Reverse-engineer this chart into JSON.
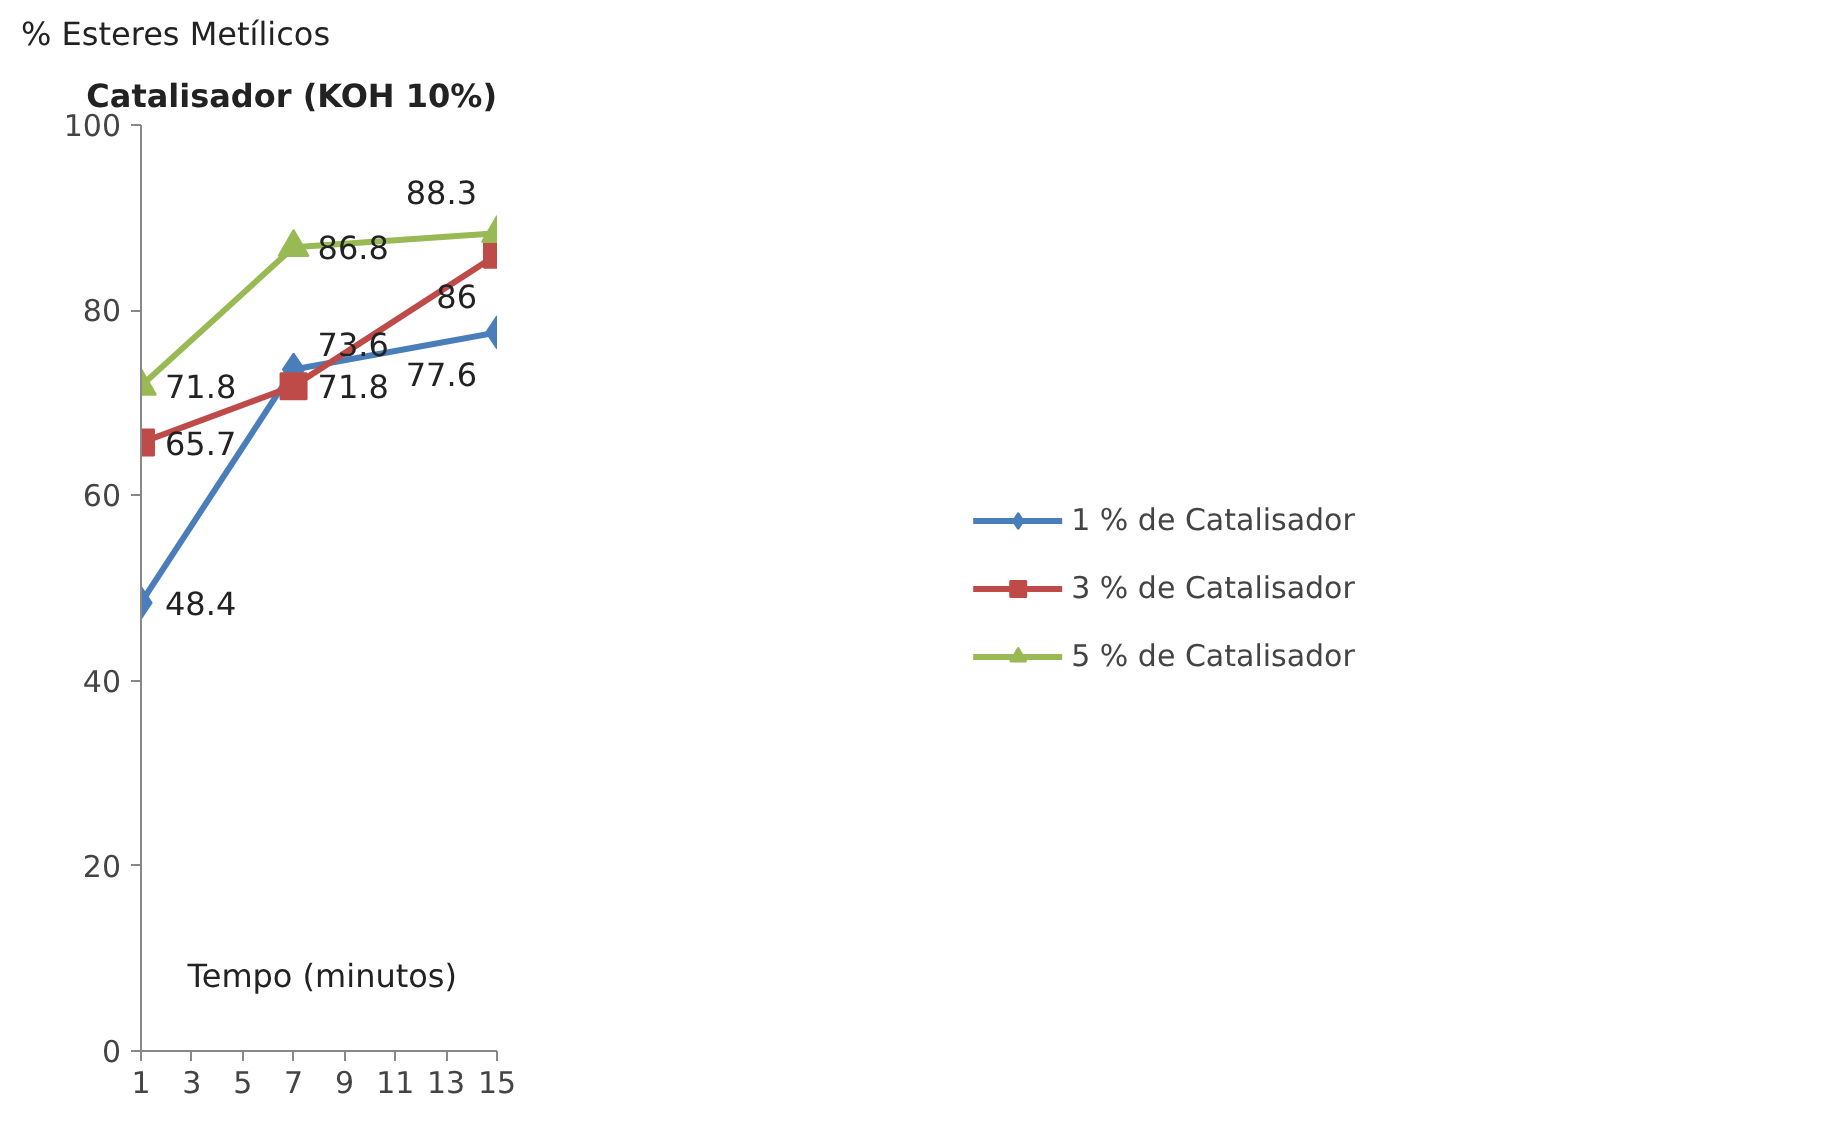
{
  "chart_data": {
    "type": "line",
    "title": "Catalisador (KOH 10%)",
    "xlabel": "Tempo (minutos)",
    "ylabel": "% Esteres Metílicos",
    "x": [
      1,
      7,
      15
    ],
    "series": [
      {
        "name": "1 % de Catalisador",
        "color": "#4a7ebb",
        "values": [
          48.4,
          73.6,
          77.6
        ],
        "marker": "diamond"
      },
      {
        "name": "3 % de Catalisador",
        "color": "#be4b48",
        "values": [
          65.7,
          71.8,
          86
        ],
        "marker": "square"
      },
      {
        "name": "5 % de Catalisador",
        "color": "#98b954",
        "values": [
          71.8,
          86.8,
          88.3
        ],
        "marker": "triangle"
      }
    ],
    "xlim": [
      1,
      15
    ],
    "xticks": [
      1,
      3,
      5,
      7,
      9,
      11,
      13,
      15
    ],
    "ylim": [
      0,
      100
    ],
    "yticks": [
      0,
      20,
      40,
      60,
      80,
      100
    ],
    "grid": false,
    "legend": "right",
    "data_labels": true,
    "line_style": "solid"
  }
}
